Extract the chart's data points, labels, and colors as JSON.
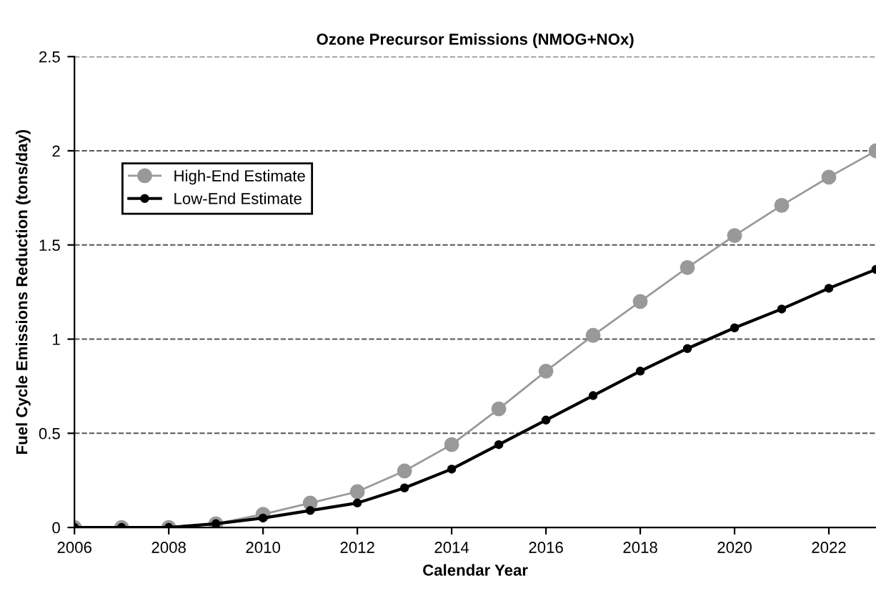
{
  "chart_data": {
    "type": "line",
    "title": "Ozone Precursor Emissions (NMOG+NOx)",
    "xlabel": "Calendar Year",
    "ylabel": "Fuel Cycle Emissions Reduction (tons/day)",
    "x": [
      2006,
      2007,
      2008,
      2009,
      2010,
      2011,
      2012,
      2013,
      2014,
      2015,
      2016,
      2017,
      2018,
      2019,
      2020,
      2021,
      2022,
      2023
    ],
    "series": [
      {
        "name": "High-End Estimate",
        "color": "#999999",
        "values": [
          0,
          0,
          0,
          0.02,
          0.07,
          0.13,
          0.19,
          0.3,
          0.44,
          0.63,
          0.83,
          1.02,
          1.2,
          1.38,
          1.55,
          1.71,
          1.86,
          2.0
        ]
      },
      {
        "name": "Low-End Estimate",
        "color": "#000000",
        "values": [
          0,
          0,
          0,
          0.02,
          0.05,
          0.09,
          0.13,
          0.21,
          0.31,
          0.44,
          0.57,
          0.7,
          0.83,
          0.95,
          1.06,
          1.16,
          1.27,
          1.37
        ]
      }
    ],
    "xlim": [
      2006,
      2023
    ],
    "xticks": [
      2006,
      2008,
      2010,
      2012,
      2014,
      2016,
      2018,
      2020,
      2022
    ],
    "ylim": [
      0,
      2.5
    ],
    "yticks": [
      0,
      0.5,
      1,
      1.5,
      2,
      2.5
    ],
    "grid": "y",
    "legend": "upper left",
    "marker": "circle",
    "line_style": "solid"
  }
}
